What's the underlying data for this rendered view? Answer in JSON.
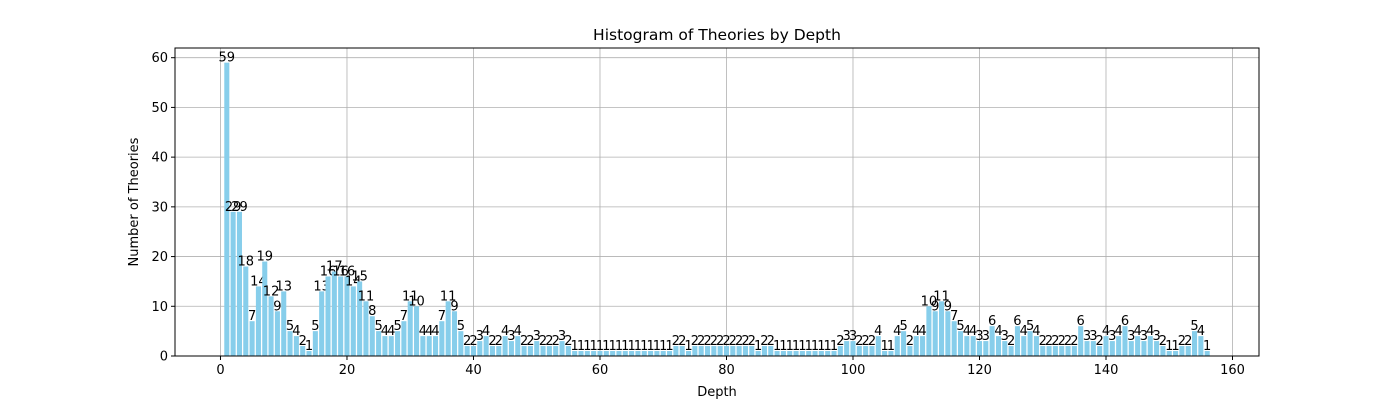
{
  "chart_data": {
    "type": "bar",
    "title": "Histogram of Theories by Depth",
    "xlabel": "Depth",
    "ylabel": "Number of Theories",
    "x": [
      1,
      2,
      3,
      4,
      5,
      6,
      7,
      8,
      9,
      10,
      11,
      12,
      13,
      14,
      15,
      16,
      17,
      18,
      19,
      20,
      21,
      22,
      23,
      24,
      25,
      26,
      27,
      28,
      29,
      30,
      31,
      32,
      33,
      34,
      35,
      36,
      37,
      38,
      39,
      40,
      41,
      42,
      43,
      44,
      45,
      46,
      47,
      48,
      49,
      50,
      51,
      52,
      53,
      54,
      55,
      56,
      57,
      58,
      59,
      60,
      61,
      62,
      63,
      64,
      65,
      66,
      67,
      68,
      69,
      70,
      71,
      72,
      73,
      74,
      75,
      76,
      77,
      78,
      79,
      80,
      81,
      82,
      83,
      84,
      85,
      86,
      87,
      88,
      89,
      90,
      91,
      92,
      93,
      94,
      95,
      96,
      97,
      98,
      99,
      100,
      101,
      102,
      103,
      104,
      105,
      106,
      107,
      108,
      109,
      110,
      111,
      112,
      113,
      114,
      115,
      116,
      117,
      118,
      119,
      120,
      121,
      122,
      123,
      124,
      125,
      126,
      127,
      128,
      129,
      130,
      131,
      132,
      133,
      134,
      135,
      136,
      137,
      138,
      139,
      140,
      141,
      142,
      143,
      144,
      145,
      146,
      147,
      148,
      149,
      150,
      151,
      152,
      153,
      154,
      155,
      156
    ],
    "values": [
      59,
      29,
      29,
      18,
      7,
      14,
      19,
      12,
      9,
      13,
      5,
      4,
      2,
      1,
      5,
      13,
      16,
      17,
      16,
      16,
      14,
      15,
      11,
      8,
      5,
      4,
      4,
      5,
      7,
      11,
      10,
      4,
      4,
      4,
      7,
      11,
      9,
      5,
      2,
      2,
      3,
      4,
      2,
      2,
      4,
      3,
      4,
      2,
      2,
      3,
      2,
      2,
      2,
      3,
      2,
      1,
      1,
      1,
      1,
      1,
      1,
      1,
      1,
      1,
      1,
      1,
      1,
      1,
      1,
      1,
      1,
      2,
      2,
      1,
      2,
      2,
      2,
      2,
      2,
      2,
      2,
      2,
      2,
      2,
      1,
      2,
      2,
      1,
      1,
      1,
      1,
      1,
      1,
      1,
      1,
      1,
      1,
      2,
      3,
      3,
      2,
      2,
      2,
      4,
      1,
      1,
      4,
      5,
      2,
      4,
      4,
      10,
      9,
      11,
      9,
      7,
      5,
      4,
      4,
      3,
      3,
      6,
      4,
      3,
      2,
      6,
      4,
      5,
      4,
      2,
      2,
      2,
      2,
      2,
      2,
      6,
      3,
      3,
      2,
      4,
      3,
      4,
      6,
      3,
      4,
      3,
      4,
      3,
      2,
      1,
      1,
      2,
      2,
      5,
      4,
      1
    ],
    "color": "#87ceeb",
    "bar_width": 0.8,
    "xlim": [
      -7.19,
      164.19
    ],
    "xticks": [
      0,
      20,
      40,
      60,
      80,
      100,
      120,
      140,
      160
    ],
    "ylim": [
      0,
      61.95
    ],
    "yticks": [
      0,
      10,
      20,
      30,
      40,
      50,
      60
    ],
    "grid": true
  }
}
